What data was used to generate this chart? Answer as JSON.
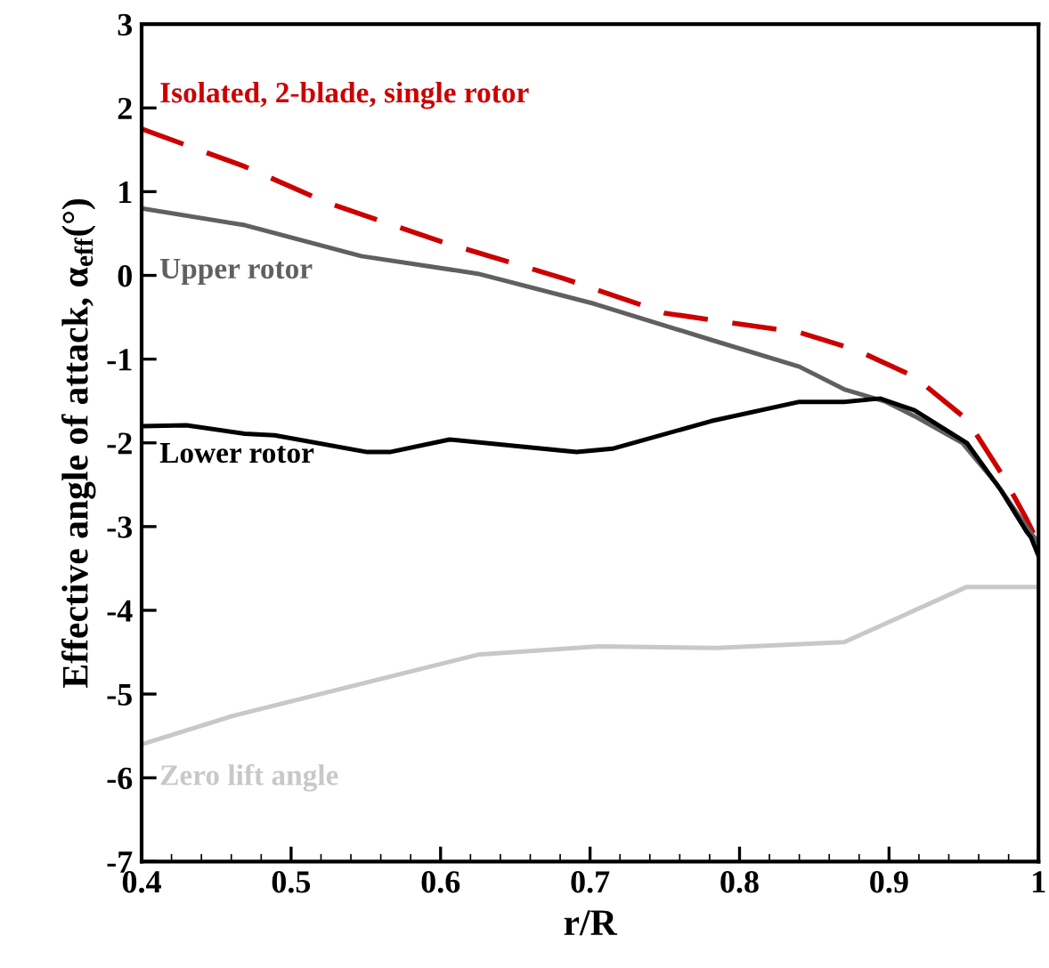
{
  "chart_data": {
    "type": "line",
    "xlabel": "r/R",
    "ylabel": "Effective angle of attack, α$_{eff}$(°)",
    "xlim": [
      0.4,
      1.0
    ],
    "ylim": [
      -7,
      3
    ],
    "xticks": [
      0.4,
      0.5,
      0.6,
      0.7,
      0.8,
      0.9,
      {
        "value": 1.0,
        "label": "1"
      }
    ],
    "yticks": [
      -7,
      -6,
      -5,
      -4,
      -3,
      -2,
      -1,
      0,
      1,
      2,
      3
    ],
    "series": [
      {
        "name": "Isolated, 2-blade, single rotor",
        "color": "#cc0000",
        "line_style": "dashed",
        "x": [
          0.4,
          0.469,
          0.524,
          0.601,
          0.683,
          0.75,
          0.796,
          0.84,
          0.878,
          0.917,
          0.952,
          0.975,
          0.992,
          1.0
        ],
        "values": [
          1.75,
          1.3,
          0.87,
          0.4,
          -0.04,
          -0.45,
          -0.57,
          -0.68,
          -0.89,
          -1.21,
          -1.72,
          -2.36,
          -2.91,
          -3.2
        ]
      },
      {
        "name": "Upper rotor",
        "color": "#606060",
        "line_style": "solid",
        "x": [
          0.4,
          0.469,
          0.547,
          0.625,
          0.703,
          0.781,
          0.84,
          0.87,
          0.898,
          0.917,
          0.949,
          0.972,
          0.992,
          1.0
        ],
        "values": [
          0.8,
          0.6,
          0.23,
          0.02,
          -0.34,
          -0.77,
          -1.09,
          -1.36,
          -1.51,
          -1.68,
          -2.0,
          -2.49,
          -3.0,
          -3.2
        ]
      },
      {
        "name": "Lower rotor",
        "color": "#000000",
        "line_style": "solid",
        "x": [
          0.4,
          0.43,
          0.469,
          0.489,
          0.551,
          0.566,
          0.606,
          0.691,
          0.715,
          0.781,
          0.84,
          0.87,
          0.894,
          0.917,
          0.952,
          0.975,
          0.992,
          0.995,
          1.0
        ],
        "values": [
          -1.8,
          -1.79,
          -1.89,
          -1.91,
          -2.11,
          -2.11,
          -1.96,
          -2.11,
          -2.07,
          -1.74,
          -1.51,
          -1.51,
          -1.47,
          -1.61,
          -2.0,
          -2.57,
          -3.06,
          -3.13,
          -3.35
        ]
      },
      {
        "name": "Zero lift angle",
        "color": "#c8c8c8",
        "line_style": "solid",
        "x": [
          0.4,
          0.461,
          0.625,
          0.706,
          0.785,
          0.87,
          0.952,
          1.0
        ],
        "values": [
          -5.6,
          -5.26,
          -4.53,
          -4.43,
          -4.45,
          -4.38,
          -3.72,
          -3.72
        ]
      }
    ]
  }
}
